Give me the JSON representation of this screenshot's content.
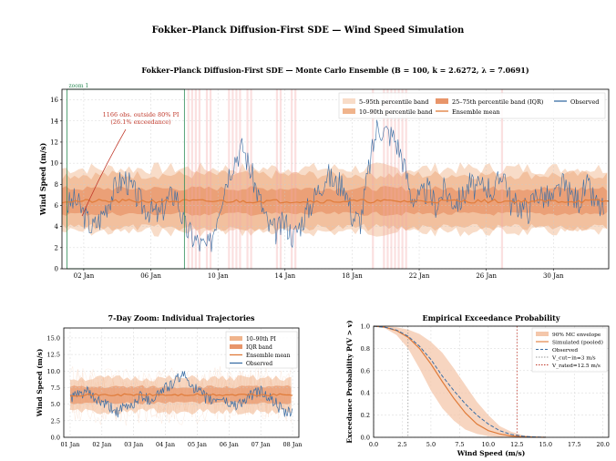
{
  "suptitle": "Fokker–Planck Diffusion-First SDE — Wind Speed Simulation",
  "chart_data": [
    {
      "type": "line",
      "title": "Fokker–Planck Diffusion-First SDE — Monte Carlo Ensemble (B = 100, k = 2.6272, λ = 7.0691)",
      "xlabel": "",
      "ylabel": "Wind Speed (m/s)",
      "x_ticks": [
        "02 Jan",
        "06 Jan",
        "10 Jan",
        "14 Jan",
        "18 Jan",
        "22 Jan",
        "26 Jan",
        "30 Jan"
      ],
      "x_tick_days": [
        2,
        6,
        10,
        14,
        18,
        22,
        26,
        30
      ],
      "xlim_days": [
        0.7,
        33.3
      ],
      "ylim": [
        0,
        17
      ],
      "y_ticks": [
        0,
        2,
        4,
        6,
        8,
        10,
        12,
        14,
        16
      ],
      "grid": true,
      "legend_position": "top-right",
      "legend": [
        "5–95th percentile band",
        "10–90th percentile band",
        "25–75th percentile band (IQR)",
        "Ensemble mean",
        "Observed"
      ],
      "annotation": "1166 obs. outside 80% PI\n(26.1% exceedance)",
      "zoom_label": "zoom 1",
      "zoom_range_days": [
        1,
        8
      ],
      "ensemble_mean": 6.4,
      "bands": {
        "p5_p95": [
          3.5,
          9.5
        ],
        "p10_p90": [
          3.9,
          8.9
        ],
        "p25_p75": [
          5.2,
          7.6
        ]
      },
      "observed_daily": {
        "days": [
          1,
          1.5,
          2,
          2.5,
          3,
          3.5,
          4,
          4.5,
          5,
          5.5,
          6,
          6.5,
          7,
          7.5,
          8,
          8.5,
          9,
          9.5,
          10,
          10.5,
          11,
          11.5,
          12,
          12.5,
          13,
          13.5,
          14,
          14.5,
          15,
          15.5,
          16,
          16.5,
          17,
          17.5,
          18,
          18.5,
          19,
          19.5,
          20,
          20.5,
          21,
          21.5,
          22,
          22.5,
          23,
          23.5,
          24,
          24.5,
          25,
          25.5,
          26,
          26.5,
          27,
          27.5,
          28,
          28.5,
          29,
          29.5,
          30,
          30.5,
          31,
          31.5,
          32,
          32.5,
          33
        ],
        "values": [
          6.0,
          6.5,
          5.2,
          3.8,
          4.8,
          6.5,
          8.0,
          8.5,
          7.2,
          6.0,
          5.5,
          5.0,
          6.5,
          7.2,
          4.0,
          3.0,
          2.2,
          2.0,
          5.5,
          8.5,
          10.5,
          11.5,
          9.0,
          6.5,
          4.0,
          3.5,
          4.5,
          3.0,
          4.5,
          6.0,
          7.5,
          9.0,
          8.0,
          8.2,
          5.0,
          4.5,
          9.5,
          13.5,
          13.0,
          12.5,
          10.5,
          7.0,
          6.5,
          7.5,
          6.0,
          7.5,
          6.5,
          6.5,
          8.0,
          7.5,
          8.0,
          7.2,
          9.5,
          6.0,
          6.0,
          5.5,
          7.2,
          6.8,
          6.5,
          8.0,
          7.0,
          6.5,
          7.8,
          6.2,
          5.5
        ]
      }
    },
    {
      "type": "line",
      "title": "7-Day Zoom: Individual Trajectories",
      "xlabel": "",
      "ylabel": "Wind Speed (m/s)",
      "x_ticks": [
        "01 Jan",
        "02 Jan",
        "03 Jan",
        "04 Jan",
        "05 Jan",
        "06 Jan",
        "07 Jan",
        "08 Jan"
      ],
      "ylim": [
        0,
        16.5
      ],
      "y_ticks": [
        "0.0",
        "2.5",
        "5.0",
        "7.5",
        "10.0",
        "12.5",
        "15.0"
      ],
      "legend_position": "top-right",
      "legend": [
        "10–90th PI",
        "IQR band",
        "Ensemble mean",
        "Observed"
      ],
      "ensemble_mean": 6.4,
      "bands": {
        "p10_p90": [
          3.9,
          8.9
        ],
        "p25_p75": [
          5.2,
          7.6
        ]
      },
      "observed": {
        "x": [
          1,
          1.25,
          1.5,
          1.75,
          2,
          2.25,
          2.5,
          2.75,
          3,
          3.25,
          3.5,
          3.75,
          4,
          4.25,
          4.5,
          4.75,
          5,
          5.25,
          5.5,
          5.75,
          6,
          6.25,
          6.5,
          6.75,
          7,
          7.25,
          7.5,
          7.75,
          8
        ],
        "y": [
          6.0,
          6.3,
          7.0,
          5.8,
          5.2,
          4.5,
          3.8,
          4.5,
          5.0,
          6.5,
          5.5,
          6.5,
          7.5,
          8.0,
          9.5,
          8.5,
          7.0,
          6.0,
          5.5,
          6.0,
          5.0,
          5.0,
          5.5,
          6.5,
          7.0,
          6.0,
          5.0,
          3.5,
          3.8
        ]
      }
    },
    {
      "type": "line",
      "title": "Empirical Exceedance Probability",
      "xlabel": "Wind Speed (m/s)",
      "ylabel": "Exceedance Probability P(V > v)",
      "xlim": [
        0,
        20.5
      ],
      "ylim": [
        0,
        1.0
      ],
      "x_ticks": [
        "0.0",
        "2.5",
        "5.0",
        "7.5",
        "10.0",
        "12.5",
        "15.0",
        "17.5",
        "20.0"
      ],
      "y_ticks": [
        "0.0",
        "0.2",
        "0.4",
        "0.6",
        "0.8",
        "1.0"
      ],
      "legend_position": "top-right",
      "legend": [
        "90% MC envelope",
        "Simulated (pooled)",
        "Observed",
        "V_cut−in=3 m/s",
        "V_rated=12.5 m/s"
      ],
      "v_cut_in": 3,
      "v_rated": 12.5,
      "simulated": {
        "x": [
          0,
          1,
          2,
          3,
          4,
          5,
          6,
          7,
          8,
          9,
          10,
          11,
          12,
          13,
          14,
          15
        ],
        "y": [
          1.0,
          0.99,
          0.96,
          0.9,
          0.8,
          0.66,
          0.5,
          0.35,
          0.22,
          0.12,
          0.06,
          0.03,
          0.012,
          0.005,
          0.002,
          0.0
        ]
      },
      "observed": {
        "x": [
          0,
          1,
          2,
          3,
          4,
          5,
          6,
          7,
          8,
          9,
          10,
          11,
          12,
          13,
          14,
          15
        ],
        "y": [
          1.0,
          0.99,
          0.965,
          0.91,
          0.82,
          0.7,
          0.55,
          0.42,
          0.3,
          0.2,
          0.12,
          0.06,
          0.025,
          0.01,
          0.003,
          0.0
        ]
      },
      "envelope": {
        "x": [
          0,
          1,
          2,
          3,
          4,
          5,
          6,
          7,
          8,
          9,
          10,
          11,
          12,
          13,
          14,
          15
        ],
        "lower": [
          1.0,
          0.98,
          0.92,
          0.8,
          0.62,
          0.42,
          0.26,
          0.15,
          0.07,
          0.03,
          0.01,
          0.003,
          0.001,
          0.0,
          0.0,
          0.0
        ],
        "upper": [
          1.0,
          1.0,
          0.99,
          0.97,
          0.93,
          0.86,
          0.76,
          0.62,
          0.47,
          0.32,
          0.2,
          0.1,
          0.05,
          0.02,
          0.008,
          0.0
        ]
      }
    }
  ]
}
